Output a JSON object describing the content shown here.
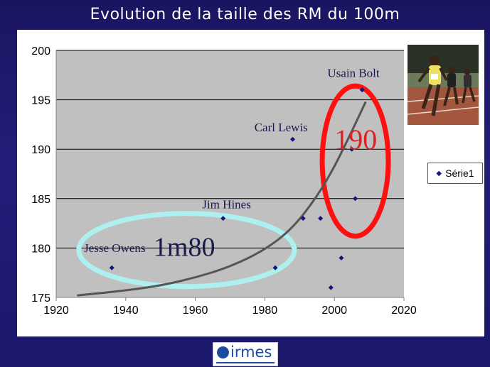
{
  "slide": {
    "title": "Evolution de la taille des RM du 100m"
  },
  "chart_data": {
    "type": "scatter",
    "title": "",
    "xlabel": "",
    "ylabel": "",
    "xlim": [
      1920,
      2020
    ],
    "ylim": [
      175,
      200
    ],
    "x_ticks": [
      1920,
      1940,
      1960,
      1980,
      2000,
      2020
    ],
    "y_ticks": [
      175,
      180,
      185,
      190,
      195,
      200
    ],
    "grid": "horizontal",
    "legend_position": "right",
    "series": [
      {
        "name": "Série1",
        "color": "#12157a",
        "marker": "diamond",
        "points": [
          {
            "x": 1936,
            "y": 178
          },
          {
            "x": 1968,
            "y": 183
          },
          {
            "x": 1983,
            "y": 178
          },
          {
            "x": 1988,
            "y": 191
          },
          {
            "x": 1991,
            "y": 183
          },
          {
            "x": 1996,
            "y": 183
          },
          {
            "x": 1999,
            "y": 176
          },
          {
            "x": 2002,
            "y": 179
          },
          {
            "x": 2005,
            "y": 190
          },
          {
            "x": 2006,
            "y": 185
          },
          {
            "x": 2008,
            "y": 196
          }
        ]
      }
    ],
    "trendline": {
      "color": "#555555",
      "points": [
        {
          "x": 1926,
          "y": 175.2
        },
        {
          "x": 1940,
          "y": 175.7
        },
        {
          "x": 1950,
          "y": 176.2
        },
        {
          "x": 1960,
          "y": 177
        },
        {
          "x": 1970,
          "y": 178.1
        },
        {
          "x": 1980,
          "y": 179.8
        },
        {
          "x": 1988,
          "y": 182
        },
        {
          "x": 1995,
          "y": 185.2
        },
        {
          "x": 2000,
          "y": 188.2
        },
        {
          "x": 2005,
          "y": 191.8
        },
        {
          "x": 2009,
          "y": 194.8
        }
      ]
    },
    "annotations": [
      {
        "text": "Jesse Owens",
        "x": 1928,
        "y": 179.6,
        "color": "#1a1a4a",
        "size": 17
      },
      {
        "text": "Jim Hines",
        "x": 1962,
        "y": 184,
        "color": "#1a1a4a",
        "size": 17
      },
      {
        "text": "Carl Lewis",
        "x": 1977,
        "y": 191.8,
        "color": "#1a1a4a",
        "size": 17
      },
      {
        "text": "Usain Bolt",
        "x": 1998,
        "y": 197.3,
        "color": "#1a1a4a",
        "size": 17
      },
      {
        "text": "1m80",
        "x": 1948,
        "y": 179.2,
        "color": "#1a1a4a",
        "size": 38
      },
      {
        "text": "190",
        "x": 2000,
        "y": 190,
        "color": "#e02020",
        "size": 40
      }
    ],
    "highlights": [
      {
        "label": "1m80",
        "shape": "ellipse",
        "color": "#aef0f0",
        "cx": 1957.5,
        "cy": 179.8,
        "rx": 31,
        "ry": 3.7
      },
      {
        "label": "190",
        "shape": "ellipse",
        "color": "#ff1010",
        "cx": 2006,
        "cy": 188.8,
        "rx": 9.5,
        "ry": 7.6
      }
    ]
  },
  "legend": {
    "label": "Série1",
    "marker": "◆"
  },
  "logo": {
    "text": "irmes",
    "icon": "irmes-logo-icon"
  },
  "photo": {
    "icon": "sprinters-photo"
  }
}
